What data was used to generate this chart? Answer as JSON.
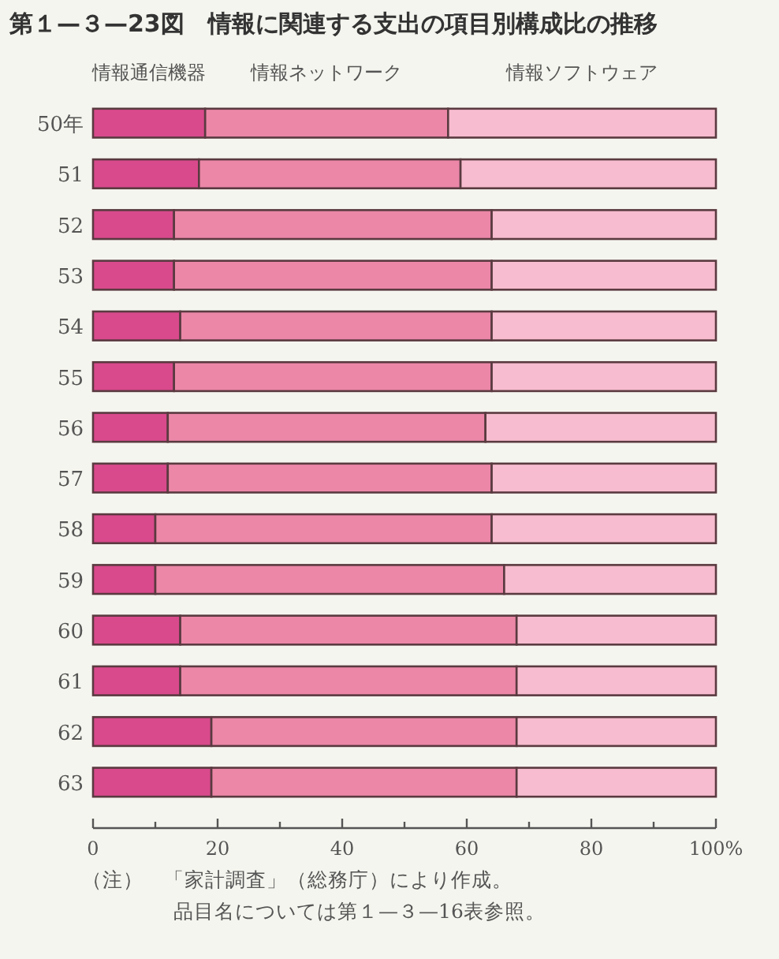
{
  "chart_data": {
    "type": "bar",
    "orientation": "horizontal",
    "stacked": true,
    "title": "第１—３—23図　情報に関連する支出の項目別構成比の推移",
    "categories": [
      "50年",
      "51",
      "52",
      "53",
      "54",
      "55",
      "56",
      "57",
      "58",
      "59",
      "60",
      "61",
      "62",
      "63"
    ],
    "series": [
      {
        "name": "情報通信機器",
        "color": "#d94a8c",
        "values": [
          18,
          17,
          13,
          13,
          14,
          13,
          12,
          12,
          10,
          10,
          14,
          14,
          19,
          19
        ]
      },
      {
        "name": "情報ネットワーク",
        "color": "#ec87a8",
        "values": [
          39,
          42,
          51,
          51,
          50,
          51,
          51,
          52,
          54,
          56,
          54,
          54,
          49,
          49
        ]
      },
      {
        "name": "情報ソフトウェア",
        "color": "#f7bccf",
        "values": [
          43,
          41,
          36,
          36,
          36,
          36,
          37,
          36,
          36,
          34,
          32,
          32,
          32,
          32
        ]
      }
    ],
    "xlim": [
      0,
      100
    ],
    "xticks": [
      0,
      {
        "value": 10,
        "label": null
      },
      20,
      {
        "value": 30,
        "label": null
      },
      40,
      {
        "value": 50,
        "label": null
      },
      60,
      {
        "value": 70,
        "label": null
      },
      80,
      {
        "value": 90,
        "label": null
      },
      {
        "value": 100,
        "label": "100%"
      }
    ],
    "legend": "top",
    "annotations": [
      "（注）　「家計調査」（総務庁）により作成。",
      "品目名については第１—３—16表参照。"
    ]
  }
}
